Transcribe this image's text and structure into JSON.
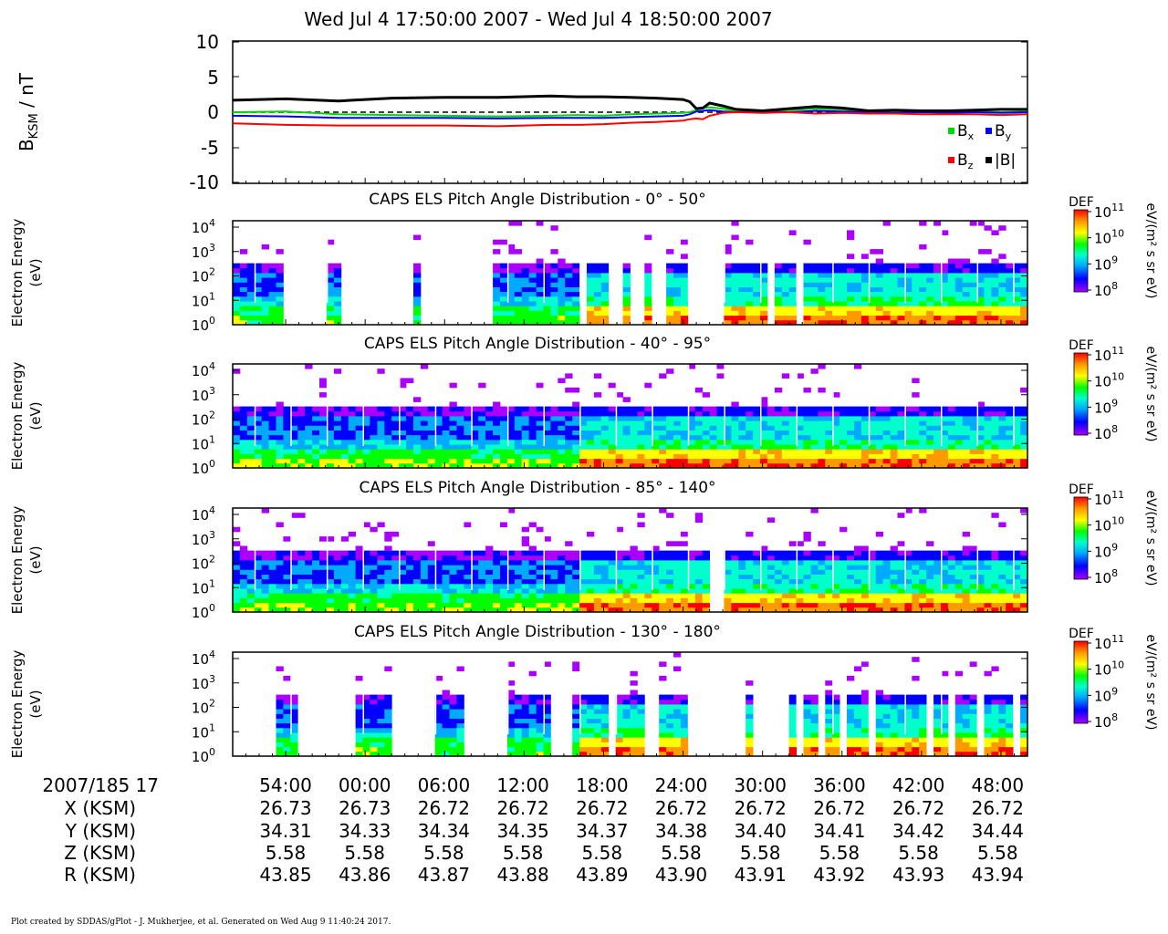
{
  "title": "Wed Jul 4 17:50:00 2007 - Wed Jul 4 18:50:00 2007",
  "chart_data": [
    {
      "type": "line",
      "title": "",
      "ylabel_main": "B",
      "ylabel_sub": "KSM",
      "ylabel_unit": " / nT",
      "ylim": [
        -10,
        10
      ],
      "yticks": [
        "10",
        "5",
        "0",
        "-5",
        "-10"
      ],
      "ytick_values": [
        10,
        5,
        0,
        -5,
        -10
      ],
      "reference_line": 0,
      "x_minutes": [
        0,
        4,
        8,
        12,
        16,
        20,
        24,
        26,
        28,
        30,
        32,
        34,
        34.5,
        35,
        35.5,
        36,
        37,
        38,
        40,
        42,
        44,
        46,
        48,
        50,
        52,
        54,
        56,
        58,
        60
      ],
      "series": [
        {
          "name": "Bx",
          "legend_main": "B",
          "legend_sub": "x",
          "color": "#00d800",
          "values": [
            0.0,
            0.1,
            -0.3,
            -0.4,
            -0.5,
            -0.6,
            -0.5,
            -0.4,
            -0.5,
            -0.3,
            -0.2,
            -0.1,
            0.0,
            0.3,
            0.6,
            0.7,
            0.5,
            0.2,
            0.1,
            0.3,
            0.5,
            0.4,
            0.1,
            0.0,
            0.1,
            0.0,
            0.1,
            0.0,
            0.1
          ]
        },
        {
          "name": "By",
          "legend_main": "B",
          "legend_sub": "y",
          "color": "#0000ff",
          "values": [
            -0.5,
            -0.6,
            -0.8,
            -0.8,
            -0.8,
            -0.9,
            -0.8,
            -0.8,
            -0.8,
            -0.7,
            -0.6,
            -0.5,
            -0.3,
            0.1,
            0.2,
            0.3,
            0.1,
            0.0,
            0.1,
            0.0,
            0.2,
            0.1,
            0.0,
            -0.1,
            0.0,
            -0.1,
            0.0,
            -0.1,
            0.0
          ]
        },
        {
          "name": "Bz",
          "legend_main": "B",
          "legend_sub": "z",
          "color": "#ff0000",
          "values": [
            -1.6,
            -1.8,
            -1.9,
            -1.9,
            -1.9,
            -2.0,
            -1.8,
            -1.8,
            -1.7,
            -1.5,
            -1.4,
            -1.2,
            -1.0,
            -0.9,
            -1.0,
            -0.5,
            -0.1,
            0.0,
            -0.1,
            0.0,
            -0.2,
            -0.1,
            -0.2,
            -0.2,
            -0.3,
            -0.3,
            -0.3,
            -0.4,
            -0.3
          ]
        },
        {
          "name": "|B|",
          "legend_main": "|B|",
          "legend_sub": "",
          "color": "#000000",
          "values": [
            1.7,
            1.9,
            1.6,
            2.0,
            2.1,
            2.1,
            2.3,
            2.2,
            2.2,
            2.1,
            2.0,
            1.8,
            1.5,
            0.5,
            0.6,
            1.3,
            0.9,
            0.4,
            0.2,
            0.5,
            0.8,
            0.6,
            0.2,
            0.3,
            0.2,
            0.2,
            0.3,
            0.4,
            0.4
          ]
        }
      ]
    },
    {
      "type": "heatmap",
      "title": "CAPS ELS Pitch Angle Distribution - 0° - 50°",
      "gaps": [
        [
          7,
          13
        ],
        [
          14.5,
          24.8
        ],
        [
          25.4,
          36
        ],
        [
          36.4,
          37
        ],
        [
          38.4,
          38.8
        ],
        [
          47.5,
          49
        ],
        [
          51.7,
          53.6
        ],
        [
          54.6,
          56.5
        ],
        [
          57.2,
          59.6
        ],
        [
          60.5,
          61
        ],
        [
          62.6,
          67.7
        ],
        [
          74,
          75
        ],
        [
          77.5,
          78.4
        ]
      ]
    },
    {
      "type": "heatmap",
      "title": "CAPS ELS Pitch Angle Distribution - 40° - 95°",
      "gaps": []
    },
    {
      "type": "heatmap",
      "title": "CAPS ELS Pitch Angle Distribution - 85° - 140°",
      "gaps": [
        [
          65.6,
          66.2
        ],
        [
          66.8,
          67.4
        ],
        [
          68.2,
          68.7
        ]
      ]
    },
    {
      "type": "heatmap",
      "title": "CAPS ELS Pitch Angle Distribution - 130° - 180°",
      "gaps": [
        [
          -1,
          5.3
        ],
        [
          8.8,
          16.8
        ],
        [
          22,
          27.7
        ],
        [
          31.4,
          37.5
        ],
        [
          43.1,
          46.6
        ],
        [
          47.3,
          47.8
        ],
        [
          49.2,
          49.6
        ],
        [
          50.3,
          50.8
        ],
        [
          51.7,
          52.2
        ],
        [
          56.8,
          58.1
        ],
        [
          61.3,
          62
        ],
        [
          62.8,
          70.4
        ],
        [
          71.1,
          77
        ],
        [
          77.6,
          78.7
        ],
        [
          80.9,
          81.4
        ],
        [
          83.7,
          84.6
        ],
        [
          85.5,
          86
        ],
        [
          88,
          88.7
        ],
        [
          91.3,
          91.8
        ],
        [
          95.6,
          96.5
        ],
        [
          98.4,
          99.3
        ],
        [
          102.4,
          103.2
        ],
        [
          107.7,
          108.6
        ]
      ]
    }
  ],
  "spectrogram_ylabel_line1": "Electron Energy",
  "spectrogram_ylabel_line2": "(eV)",
  "energy_ticks": [
    {
      "base": "10",
      "exp": "4"
    },
    {
      "base": "10",
      "exp": "3"
    },
    {
      "base": "10",
      "exp": "2"
    },
    {
      "base": "10",
      "exp": "1"
    },
    {
      "base": "10",
      "exp": "0"
    }
  ],
  "colorbar": {
    "label": "DEF",
    "unit_text": "eV/(m² s sr eV)",
    "ticks": [
      {
        "base": "10",
        "exp": "11"
      },
      {
        "base": "10",
        "exp": "10"
      },
      {
        "base": "10",
        "exp": "9"
      },
      {
        "base": "10",
        "exp": "8"
      }
    ],
    "colors": [
      "#ff0000",
      "#ff9900",
      "#ffff00",
      "#00ff00",
      "#00ffcc",
      "#00aaff",
      "#0000ff",
      "#aa00ff"
    ]
  },
  "footer_table": {
    "row_labels": [
      "2007/185 17",
      "X (KSM)",
      "Y (KSM)",
      "Z (KSM)",
      "R (KSM)"
    ],
    "columns": [
      [
        "54:00",
        "26.73",
        "34.31",
        "5.58",
        "43.85"
      ],
      [
        "00:00",
        "26.73",
        "34.33",
        "5.58",
        "43.86"
      ],
      [
        "06:00",
        "26.72",
        "34.34",
        "5.58",
        "43.87"
      ],
      [
        "12:00",
        "26.72",
        "34.35",
        "5.58",
        "43.88"
      ],
      [
        "18:00",
        "26.72",
        "34.37",
        "5.58",
        "43.89"
      ],
      [
        "24:00",
        "26.72",
        "34.38",
        "5.58",
        "43.90"
      ],
      [
        "30:00",
        "26.72",
        "34.40",
        "5.58",
        "43.91"
      ],
      [
        "36:00",
        "26.72",
        "34.41",
        "5.58",
        "43.92"
      ],
      [
        "42:00",
        "26.72",
        "34.42",
        "5.58",
        "43.93"
      ],
      [
        "48:00",
        "26.72",
        "34.44",
        "5.58",
        "43.94"
      ]
    ]
  },
  "footer_note": "Plot created by SDDAS/gPlot - J. Mukherjee, et al.  Generated on Wed Aug 9 11:40:24 2017."
}
